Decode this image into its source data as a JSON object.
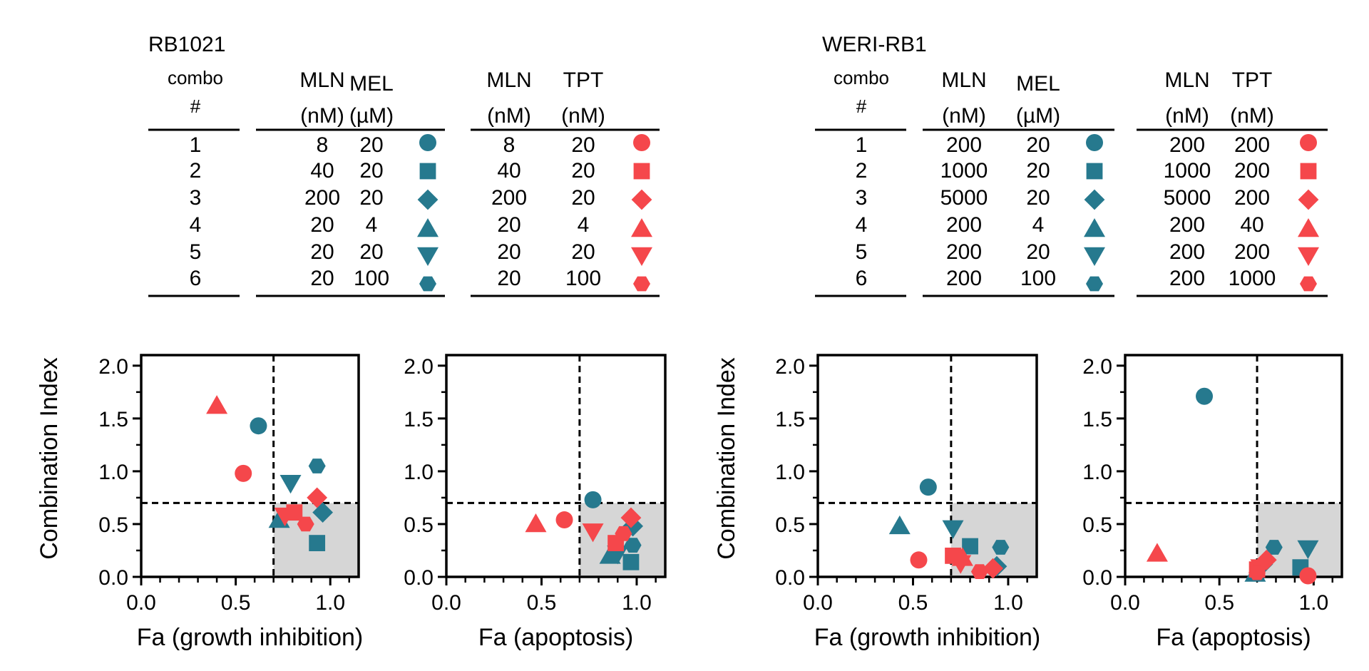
{
  "colors": {
    "mel": "#26798E",
    "tpt": "#F5474B",
    "shade": "#D6D6D6"
  },
  "tables": [
    {
      "title": "RB1021",
      "combo_header_1": "combo",
      "combo_header_2": "#",
      "mel_headers": [
        "MLN",
        "MEL"
      ],
      "mel_units": [
        "(nM)",
        "(µM)"
      ],
      "tpt_headers": [
        "MLN",
        "TPT"
      ],
      "tpt_units": [
        "(nM)",
        "(nM)"
      ],
      "rows": [
        {
          "combo": "1",
          "mel_mln": "8",
          "mel_drug": "20",
          "tpt_mln": "8",
          "tpt_drug": "20",
          "marker": "circle"
        },
        {
          "combo": "2",
          "mel_mln": "40",
          "mel_drug": "20",
          "tpt_mln": "40",
          "tpt_drug": "20",
          "marker": "square"
        },
        {
          "combo": "3",
          "mel_mln": "200",
          "mel_drug": "20",
          "tpt_mln": "200",
          "tpt_drug": "20",
          "marker": "diamond"
        },
        {
          "combo": "4",
          "mel_mln": "20",
          "mel_drug": "4",
          "tpt_mln": "20",
          "tpt_drug": "4",
          "marker": "triangle-up"
        },
        {
          "combo": "5",
          "mel_mln": "20",
          "mel_drug": "20",
          "tpt_mln": "20",
          "tpt_drug": "20",
          "marker": "triangle-down"
        },
        {
          "combo": "6",
          "mel_mln": "20",
          "mel_drug": "100",
          "tpt_mln": "20",
          "tpt_drug": "100",
          "marker": "hexagon"
        }
      ]
    },
    {
      "title": "WERI-RB1",
      "combo_header_1": "combo",
      "combo_header_2": "#",
      "mel_headers": [
        "MLN",
        "MEL"
      ],
      "mel_units": [
        "(nM)",
        "(µM)"
      ],
      "tpt_headers": [
        "MLN",
        "TPT"
      ],
      "tpt_units": [
        "(nM)",
        "(nM)"
      ],
      "rows": [
        {
          "combo": "1",
          "mel_mln": "200",
          "mel_drug": "20",
          "tpt_mln": "200",
          "tpt_drug": "200",
          "marker": "circle"
        },
        {
          "combo": "2",
          "mel_mln": "1000",
          "mel_drug": "20",
          "tpt_mln": "1000",
          "tpt_drug": "200",
          "marker": "square"
        },
        {
          "combo": "3",
          "mel_mln": "5000",
          "mel_drug": "20",
          "tpt_mln": "5000",
          "tpt_drug": "200",
          "marker": "diamond"
        },
        {
          "combo": "4",
          "mel_mln": "200",
          "mel_drug": "4",
          "tpt_mln": "200",
          "tpt_drug": "40",
          "marker": "triangle-up"
        },
        {
          "combo": "5",
          "mel_mln": "200",
          "mel_drug": "20",
          "tpt_mln": "200",
          "tpt_drug": "200",
          "marker": "triangle-down"
        },
        {
          "combo": "6",
          "mel_mln": "200",
          "mel_drug": "100",
          "tpt_mln": "200",
          "tpt_drug": "1000",
          "marker": "hexagon"
        }
      ]
    }
  ],
  "chart_data": [
    {
      "type": "scatter",
      "id": "rb1021-growth",
      "cell_line": "RB1021",
      "xlabel": "Fa (growth inhibition)",
      "ylabel": "Combination Index",
      "xlim": [
        0,
        1.15
      ],
      "ylim": [
        0,
        2.1
      ],
      "xticks": [
        "0.0",
        "0.5",
        "1.0"
      ],
      "yticks": [
        "0.0",
        "0.5",
        "1.0",
        "1.5",
        "2.0"
      ],
      "threshold_x": 0.7,
      "threshold_y": 0.7,
      "series": [
        {
          "name": "MLN + MEL",
          "color_key": "mel",
          "points": [
            {
              "combo": 1,
              "x": 0.62,
              "y": 1.43
            },
            {
              "combo": 2,
              "x": 0.93,
              "y": 0.32
            },
            {
              "combo": 3,
              "x": 0.96,
              "y": 0.61
            },
            {
              "combo": 4,
              "x": 0.73,
              "y": 0.54
            },
            {
              "combo": 5,
              "x": 0.79,
              "y": 0.89
            },
            {
              "combo": 6,
              "x": 0.93,
              "y": 1.05
            }
          ]
        },
        {
          "name": "MLN + TPT",
          "color_key": "tpt",
          "points": [
            {
              "combo": 1,
              "x": 0.54,
              "y": 0.98
            },
            {
              "combo": 2,
              "x": 0.81,
              "y": 0.61
            },
            {
              "combo": 3,
              "x": 0.93,
              "y": 0.75
            },
            {
              "combo": 4,
              "x": 0.4,
              "y": 1.62
            },
            {
              "combo": 5,
              "x": 0.76,
              "y": 0.58
            },
            {
              "combo": 6,
              "x": 0.87,
              "y": 0.5
            }
          ]
        }
      ]
    },
    {
      "type": "scatter",
      "id": "rb1021-apoptosis",
      "cell_line": "RB1021",
      "xlabel": "Fa (apoptosis)",
      "ylabel": "",
      "xlim": [
        0,
        1.15
      ],
      "ylim": [
        0,
        2.1
      ],
      "xticks": [
        "0.0",
        "0.5",
        "1.0"
      ],
      "yticks": [
        "0.0",
        "0.5",
        "1.0",
        "1.5",
        "2.0"
      ],
      "threshold_x": 0.7,
      "threshold_y": 0.7,
      "series": [
        {
          "name": "MLN + MEL",
          "color_key": "mel",
          "points": [
            {
              "combo": 1,
              "x": 0.77,
              "y": 0.73
            },
            {
              "combo": 2,
              "x": 0.97,
              "y": 0.14
            },
            {
              "combo": 3,
              "x": 0.98,
              "y": 0.48
            },
            {
              "combo": 4,
              "x": 0.86,
              "y": 0.2
            },
            {
              "combo": 5,
              "x": 0.9,
              "y": 0.22
            },
            {
              "combo": 6,
              "x": 0.98,
              "y": 0.3
            }
          ]
        },
        {
          "name": "MLN + TPT",
          "color_key": "tpt",
          "points": [
            {
              "combo": 1,
              "x": 0.62,
              "y": 0.54
            },
            {
              "combo": 2,
              "x": 0.89,
              "y": 0.32
            },
            {
              "combo": 3,
              "x": 0.97,
              "y": 0.56
            },
            {
              "combo": 4,
              "x": 0.47,
              "y": 0.5
            },
            {
              "combo": 5,
              "x": 0.77,
              "y": 0.43
            },
            {
              "combo": 6,
              "x": 0.93,
              "y": 0.41
            }
          ]
        }
      ]
    },
    {
      "type": "scatter",
      "id": "weri-growth",
      "cell_line": "WERI-RB1",
      "xlabel": "Fa (growth inhibition)",
      "ylabel": "Combination Index",
      "xlim": [
        0,
        1.15
      ],
      "ylim": [
        0,
        2.1
      ],
      "xticks": [
        "0.0",
        "0.5",
        "1.0"
      ],
      "yticks": [
        "0.0",
        "0.5",
        "1.0",
        "1.5",
        "2.0"
      ],
      "threshold_x": 0.7,
      "threshold_y": 0.7,
      "series": [
        {
          "name": "MLN + MEL",
          "color_key": "mel",
          "points": [
            {
              "combo": 1,
              "x": 0.58,
              "y": 0.85
            },
            {
              "combo": 2,
              "x": 0.8,
              "y": 0.29
            },
            {
              "combo": 3,
              "x": 0.94,
              "y": 0.1
            },
            {
              "combo": 4,
              "x": 0.43,
              "y": 0.48
            },
            {
              "combo": 5,
              "x": 0.71,
              "y": 0.46
            },
            {
              "combo": 6,
              "x": 0.96,
              "y": 0.28
            }
          ]
        },
        {
          "name": "MLN + TPT",
          "color_key": "tpt",
          "points": [
            {
              "combo": 1,
              "x": 0.53,
              "y": 0.16
            },
            {
              "combo": 2,
              "x": 0.71,
              "y": 0.2
            },
            {
              "combo": 3,
              "x": 0.92,
              "y": 0.08
            },
            {
              "combo": 4,
              "x": 0.76,
              "y": 0.18
            },
            {
              "combo": 5,
              "x": 0.75,
              "y": 0.13
            },
            {
              "combo": 6,
              "x": 0.85,
              "y": 0.05
            }
          ]
        }
      ]
    },
    {
      "type": "scatter",
      "id": "weri-apoptosis",
      "cell_line": "WERI-RB1",
      "xlabel": "Fa (apoptosis)",
      "ylabel": "",
      "xlim": [
        0,
        1.15
      ],
      "ylim": [
        0,
        2.1
      ],
      "xticks": [
        "0.0",
        "0.5",
        "1.0"
      ],
      "yticks": [
        "0.0",
        "0.5",
        "1.0",
        "1.5",
        "2.0"
      ],
      "threshold_x": 0.7,
      "threshold_y": 0.7,
      "series": [
        {
          "name": "MLN + MEL",
          "color_key": "mel",
          "points": [
            {
              "combo": 1,
              "x": 0.42,
              "y": 1.71
            },
            {
              "combo": 2,
              "x": 0.93,
              "y": 0.09
            },
            {
              "combo": 3,
              "x": 0.73,
              "y": 0.12
            },
            {
              "combo": 4,
              "x": 0.69,
              "y": 0.03
            },
            {
              "combo": 5,
              "x": 0.97,
              "y": 0.27
            },
            {
              "combo": 6,
              "x": 0.79,
              "y": 0.28
            }
          ]
        },
        {
          "name": "MLN + TPT",
          "color_key": "tpt",
          "points": [
            {
              "combo": 1,
              "x": 0.97,
              "y": 0.01
            },
            {
              "combo": 2,
              "x": 0.7,
              "y": 0.07
            },
            {
              "combo": 3,
              "x": 0.75,
              "y": 0.16
            },
            {
              "combo": 4,
              "x": 0.17,
              "y": 0.22
            },
            {
              "combo": 5,
              "x": 0.72,
              "y": 0.09
            },
            {
              "combo": 6,
              "x": 0.7,
              "y": 0.04
            }
          ]
        }
      ]
    }
  ]
}
